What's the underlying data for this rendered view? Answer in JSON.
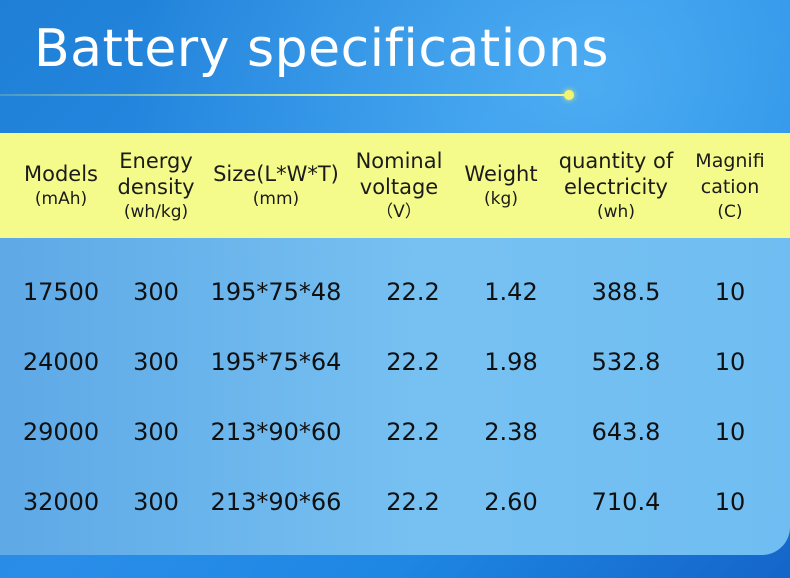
{
  "title": "Battery specifications",
  "colors": {
    "header_bg": "#f4fb8a",
    "accent_dot": "#f4f56f",
    "background": "#2a8ee8"
  },
  "table": {
    "columns": [
      {
        "lines": [
          "Models"
        ],
        "unit": "(mAh)"
      },
      {
        "lines": [
          "Energy",
          "density"
        ],
        "unit": "(wh/kg)"
      },
      {
        "lines": [
          "Size(L*W*T)"
        ],
        "unit": "(mm)"
      },
      {
        "lines": [
          "Nominal",
          "voltage"
        ],
        "unit": "（V）"
      },
      {
        "lines": [
          "Weight"
        ],
        "unit": "(kg)"
      },
      {
        "lines": [
          "quantity of",
          "electricity"
        ],
        "unit": "(wh)"
      },
      {
        "lines": [
          "Magnifi",
          "cation"
        ],
        "unit": "(C)"
      }
    ],
    "rows": [
      [
        "17500",
        "300",
        "195*75*48",
        "22.2",
        "1.42",
        "388.5",
        "10"
      ],
      [
        "24000",
        "300",
        "195*75*64",
        "22.2",
        "1.98",
        "532.8",
        "10"
      ],
      [
        "29000",
        "300",
        "213*90*60",
        "22.2",
        "2.38",
        "643.8",
        "10"
      ],
      [
        "32000",
        "300",
        "213*90*66",
        "22.2",
        "2.60",
        "710.4",
        "10"
      ]
    ]
  }
}
